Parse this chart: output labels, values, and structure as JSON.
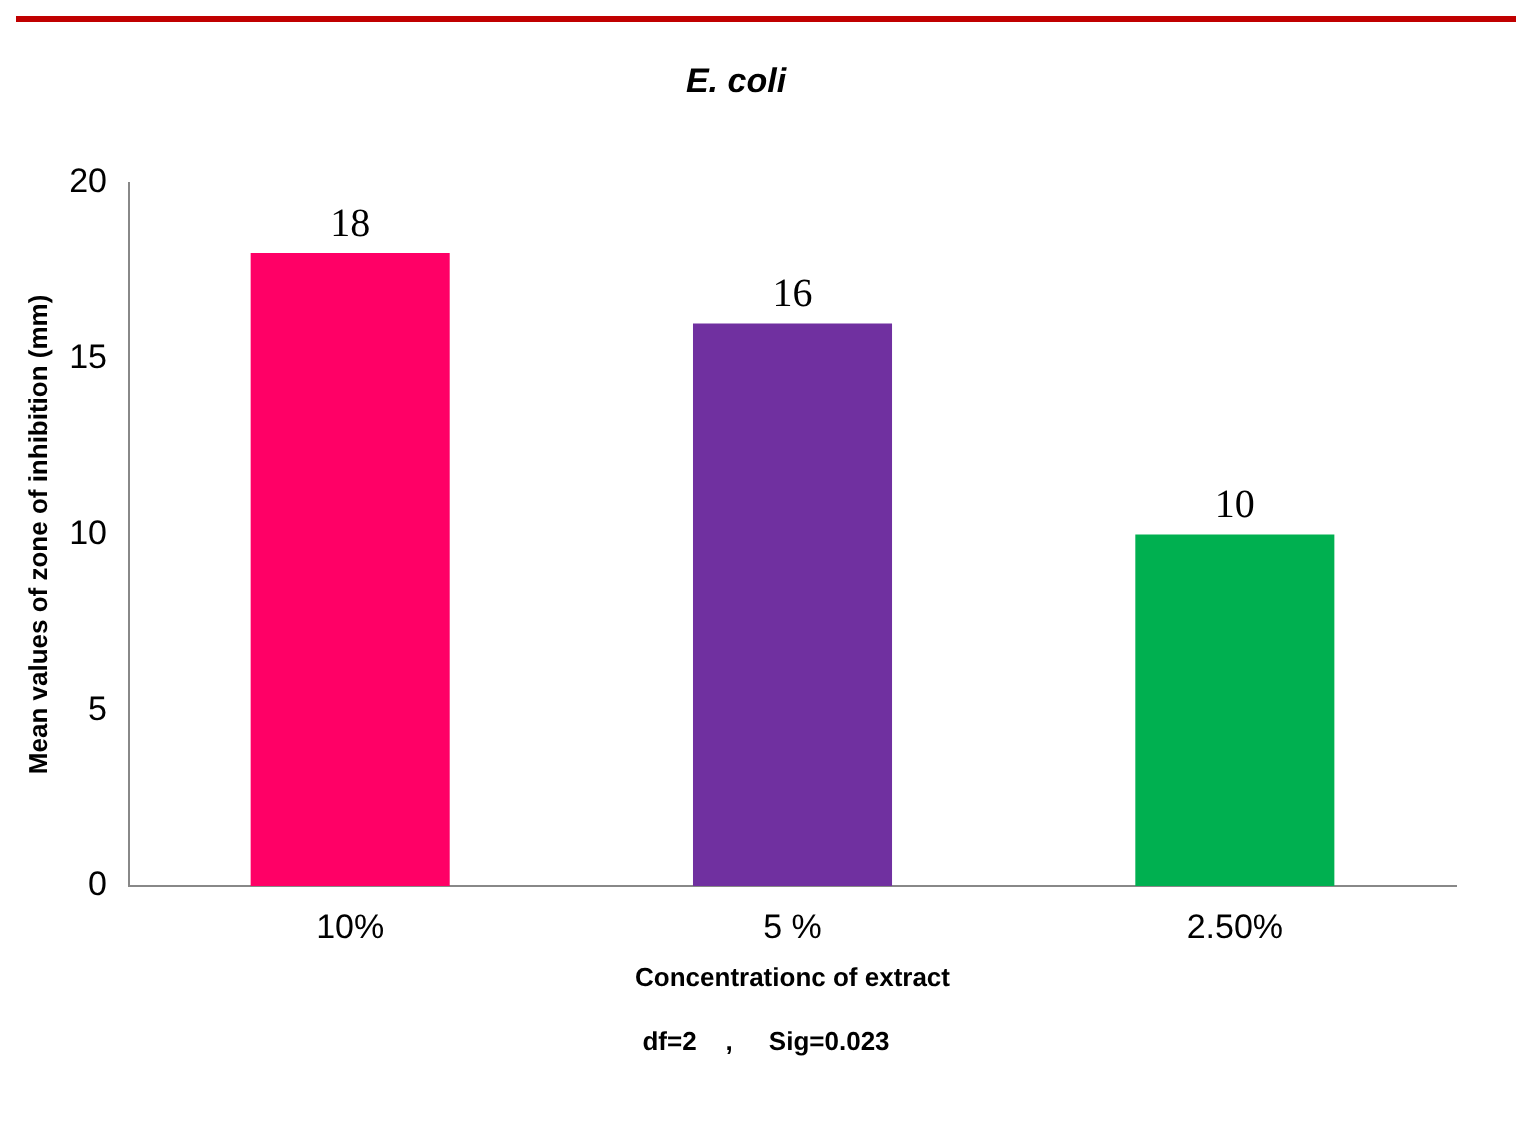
{
  "chart_data": {
    "type": "bar",
    "title": "E. coli",
    "xlabel": "Concentrationc of extract",
    "ylabel": "Mean values of zone of inhibition (mm)",
    "annotations": [
      "df=2    ,     Sig=0.023"
    ],
    "categories": [
      "10%",
      "5 %",
      "2.50%"
    ],
    "values": [
      18,
      16,
      10
    ],
    "colors": [
      "#ff0066",
      "#7030a0",
      "#00b050"
    ],
    "ylim": [
      0,
      20
    ],
    "yticks": [
      0,
      5,
      10,
      15,
      20
    ],
    "grid": false,
    "legend": false,
    "data_labels": true
  }
}
